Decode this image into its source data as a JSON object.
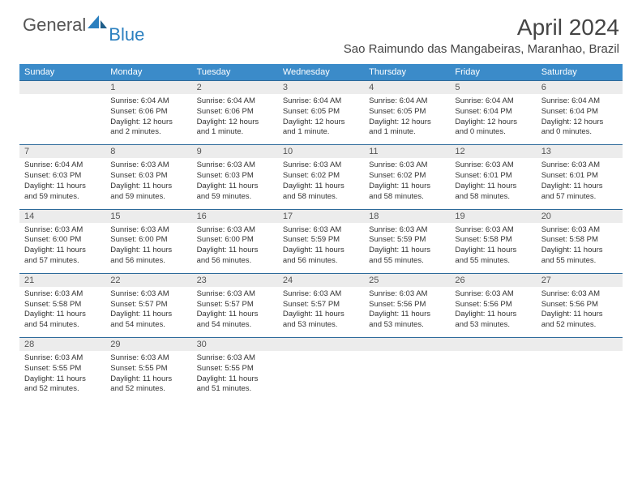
{
  "brand": {
    "general": "General",
    "blue": "Blue"
  },
  "title": "April 2024",
  "location": "Sao Raimundo das Mangabeiras, Maranhao, Brazil",
  "colors": {
    "header_bg": "#3b8bc9",
    "header_text": "#ffffff",
    "daynum_bg": "#ececec",
    "border": "#2d6a9a",
    "text": "#333333",
    "logo_gray": "#555555",
    "logo_blue": "#2a7fbf"
  },
  "dayNames": [
    "Sunday",
    "Monday",
    "Tuesday",
    "Wednesday",
    "Thursday",
    "Friday",
    "Saturday"
  ],
  "weeks": [
    [
      {
        "day": "",
        "sunrise": "",
        "sunset": "",
        "daylight": ""
      },
      {
        "day": "1",
        "sunrise": "Sunrise: 6:04 AM",
        "sunset": "Sunset: 6:06 PM",
        "daylight": "Daylight: 12 hours and 2 minutes."
      },
      {
        "day": "2",
        "sunrise": "Sunrise: 6:04 AM",
        "sunset": "Sunset: 6:06 PM",
        "daylight": "Daylight: 12 hours and 1 minute."
      },
      {
        "day": "3",
        "sunrise": "Sunrise: 6:04 AM",
        "sunset": "Sunset: 6:05 PM",
        "daylight": "Daylight: 12 hours and 1 minute."
      },
      {
        "day": "4",
        "sunrise": "Sunrise: 6:04 AM",
        "sunset": "Sunset: 6:05 PM",
        "daylight": "Daylight: 12 hours and 1 minute."
      },
      {
        "day": "5",
        "sunrise": "Sunrise: 6:04 AM",
        "sunset": "Sunset: 6:04 PM",
        "daylight": "Daylight: 12 hours and 0 minutes."
      },
      {
        "day": "6",
        "sunrise": "Sunrise: 6:04 AM",
        "sunset": "Sunset: 6:04 PM",
        "daylight": "Daylight: 12 hours and 0 minutes."
      }
    ],
    [
      {
        "day": "7",
        "sunrise": "Sunrise: 6:04 AM",
        "sunset": "Sunset: 6:03 PM",
        "daylight": "Daylight: 11 hours and 59 minutes."
      },
      {
        "day": "8",
        "sunrise": "Sunrise: 6:03 AM",
        "sunset": "Sunset: 6:03 PM",
        "daylight": "Daylight: 11 hours and 59 minutes."
      },
      {
        "day": "9",
        "sunrise": "Sunrise: 6:03 AM",
        "sunset": "Sunset: 6:03 PM",
        "daylight": "Daylight: 11 hours and 59 minutes."
      },
      {
        "day": "10",
        "sunrise": "Sunrise: 6:03 AM",
        "sunset": "Sunset: 6:02 PM",
        "daylight": "Daylight: 11 hours and 58 minutes."
      },
      {
        "day": "11",
        "sunrise": "Sunrise: 6:03 AM",
        "sunset": "Sunset: 6:02 PM",
        "daylight": "Daylight: 11 hours and 58 minutes."
      },
      {
        "day": "12",
        "sunrise": "Sunrise: 6:03 AM",
        "sunset": "Sunset: 6:01 PM",
        "daylight": "Daylight: 11 hours and 58 minutes."
      },
      {
        "day": "13",
        "sunrise": "Sunrise: 6:03 AM",
        "sunset": "Sunset: 6:01 PM",
        "daylight": "Daylight: 11 hours and 57 minutes."
      }
    ],
    [
      {
        "day": "14",
        "sunrise": "Sunrise: 6:03 AM",
        "sunset": "Sunset: 6:00 PM",
        "daylight": "Daylight: 11 hours and 57 minutes."
      },
      {
        "day": "15",
        "sunrise": "Sunrise: 6:03 AM",
        "sunset": "Sunset: 6:00 PM",
        "daylight": "Daylight: 11 hours and 56 minutes."
      },
      {
        "day": "16",
        "sunrise": "Sunrise: 6:03 AM",
        "sunset": "Sunset: 6:00 PM",
        "daylight": "Daylight: 11 hours and 56 minutes."
      },
      {
        "day": "17",
        "sunrise": "Sunrise: 6:03 AM",
        "sunset": "Sunset: 5:59 PM",
        "daylight": "Daylight: 11 hours and 56 minutes."
      },
      {
        "day": "18",
        "sunrise": "Sunrise: 6:03 AM",
        "sunset": "Sunset: 5:59 PM",
        "daylight": "Daylight: 11 hours and 55 minutes."
      },
      {
        "day": "19",
        "sunrise": "Sunrise: 6:03 AM",
        "sunset": "Sunset: 5:58 PM",
        "daylight": "Daylight: 11 hours and 55 minutes."
      },
      {
        "day": "20",
        "sunrise": "Sunrise: 6:03 AM",
        "sunset": "Sunset: 5:58 PM",
        "daylight": "Daylight: 11 hours and 55 minutes."
      }
    ],
    [
      {
        "day": "21",
        "sunrise": "Sunrise: 6:03 AM",
        "sunset": "Sunset: 5:58 PM",
        "daylight": "Daylight: 11 hours and 54 minutes."
      },
      {
        "day": "22",
        "sunrise": "Sunrise: 6:03 AM",
        "sunset": "Sunset: 5:57 PM",
        "daylight": "Daylight: 11 hours and 54 minutes."
      },
      {
        "day": "23",
        "sunrise": "Sunrise: 6:03 AM",
        "sunset": "Sunset: 5:57 PM",
        "daylight": "Daylight: 11 hours and 54 minutes."
      },
      {
        "day": "24",
        "sunrise": "Sunrise: 6:03 AM",
        "sunset": "Sunset: 5:57 PM",
        "daylight": "Daylight: 11 hours and 53 minutes."
      },
      {
        "day": "25",
        "sunrise": "Sunrise: 6:03 AM",
        "sunset": "Sunset: 5:56 PM",
        "daylight": "Daylight: 11 hours and 53 minutes."
      },
      {
        "day": "26",
        "sunrise": "Sunrise: 6:03 AM",
        "sunset": "Sunset: 5:56 PM",
        "daylight": "Daylight: 11 hours and 53 minutes."
      },
      {
        "day": "27",
        "sunrise": "Sunrise: 6:03 AM",
        "sunset": "Sunset: 5:56 PM",
        "daylight": "Daylight: 11 hours and 52 minutes."
      }
    ],
    [
      {
        "day": "28",
        "sunrise": "Sunrise: 6:03 AM",
        "sunset": "Sunset: 5:55 PM",
        "daylight": "Daylight: 11 hours and 52 minutes."
      },
      {
        "day": "29",
        "sunrise": "Sunrise: 6:03 AM",
        "sunset": "Sunset: 5:55 PM",
        "daylight": "Daylight: 11 hours and 52 minutes."
      },
      {
        "day": "30",
        "sunrise": "Sunrise: 6:03 AM",
        "sunset": "Sunset: 5:55 PM",
        "daylight": "Daylight: 11 hours and 51 minutes."
      },
      {
        "day": "",
        "sunrise": "",
        "sunset": "",
        "daylight": ""
      },
      {
        "day": "",
        "sunrise": "",
        "sunset": "",
        "daylight": ""
      },
      {
        "day": "",
        "sunrise": "",
        "sunset": "",
        "daylight": ""
      },
      {
        "day": "",
        "sunrise": "",
        "sunset": "",
        "daylight": ""
      }
    ]
  ]
}
